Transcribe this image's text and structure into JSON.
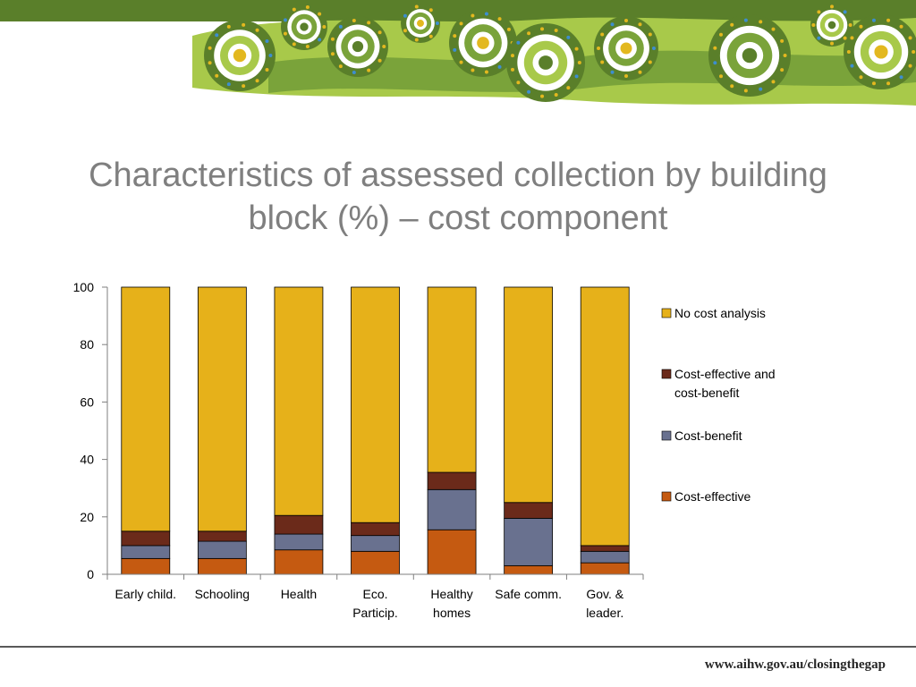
{
  "title_lines": [
    "Characteristics of assessed collection by building",
    "block (%) – cost component"
  ],
  "footer": {
    "url": "www.aihw.gov.au/closingthegap"
  },
  "colors": {
    "banner_dark": "#5a7f2a",
    "banner_mid": "#7aa33a",
    "banner_light": "#a8c94a",
    "accent_yellow": "#e3b81f",
    "accent_blue": "#3d8ecf",
    "title_gray": "#7f7f7f"
  },
  "chart_data": {
    "type": "bar",
    "stacked": true,
    "title": "",
    "xlabel": "",
    "ylabel": "",
    "ylim": [
      0,
      100
    ],
    "yticks": [
      0,
      20,
      40,
      60,
      80,
      100
    ],
    "grid": false,
    "legend_position": "right",
    "categories": [
      [
        "Early child."
      ],
      [
        "Schooling"
      ],
      [
        "Health"
      ],
      [
        "Eco.",
        "Particip."
      ],
      [
        "Healthy",
        "homes"
      ],
      [
        "Safe comm."
      ],
      [
        "Gov. &",
        "leader."
      ]
    ],
    "series": [
      {
        "name": "Cost-effective",
        "color": "#c55a11",
        "values": [
          5.5,
          5.5,
          8.5,
          8,
          15.5,
          3,
          4
        ]
      },
      {
        "name": "Cost-benefit",
        "color": "#69718f",
        "values": [
          4.5,
          6,
          5.5,
          5.5,
          14,
          16.5,
          4
        ]
      },
      {
        "name": "Cost-effective and cost-benefit",
        "color": "#6b2a1a",
        "values": [
          5,
          3.5,
          6.5,
          4.5,
          6,
          5.5,
          2
        ]
      },
      {
        "name": "No cost analysis",
        "color": "#e6b11a",
        "values": [
          85,
          85,
          79.5,
          82,
          64.5,
          75,
          90
        ]
      }
    ],
    "legend": [
      {
        "series": 3,
        "lines": [
          "No cost analysis"
        ]
      },
      {
        "series": 2,
        "lines": [
          "Cost-effective and",
          "cost-benefit"
        ]
      },
      {
        "series": 1,
        "lines": [
          "Cost-benefit"
        ]
      },
      {
        "series": 0,
        "lines": [
          "Cost-effective"
        ]
      }
    ]
  }
}
